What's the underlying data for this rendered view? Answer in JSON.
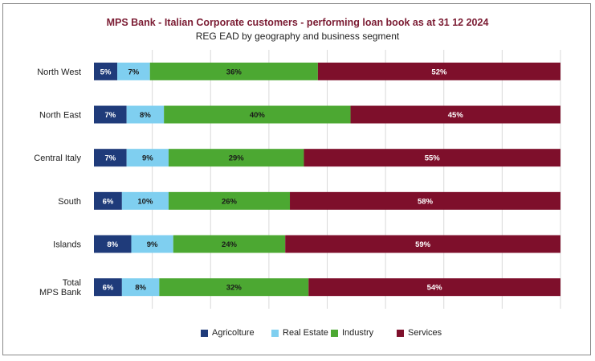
{
  "title": "MPS Bank - Italian Corporate customers - performing loan book as at 31 12 2024",
  "subtitle": "REG EAD by geography and business segment",
  "chart_data": {
    "type": "bar",
    "orientation": "horizontal",
    "stacked": true,
    "percent_stacked": true,
    "title": "MPS Bank - Italian Corporate customers - performing loan book as at 31 12 2024",
    "subtitle": "REG EAD by geography and business segment",
    "xlabel": "",
    "ylabel": "",
    "xlim": [
      0,
      100
    ],
    "grid": true,
    "legend_position": "bottom",
    "categories": [
      "North West",
      "North East",
      "Central Italy",
      "South",
      "Islands",
      "Total MPS Bank"
    ],
    "series": [
      {
        "name": "Agricolture",
        "color": "#1f3b7a",
        "values": [
          5,
          7,
          7,
          6,
          8,
          6
        ],
        "labels": [
          "5%",
          "7%",
          "7%",
          "6%",
          "8%",
          "6%"
        ],
        "label_color": "#ffffff"
      },
      {
        "name": "Real Estate",
        "color": "#7fcff0",
        "values": [
          7,
          8,
          9,
          10,
          9,
          8
        ],
        "labels": [
          "7%",
          "8%",
          "9%",
          "10%",
          "9%",
          "8%"
        ],
        "label_color": "#1a1a1a"
      },
      {
        "name": "Industry",
        "color": "#4ca832",
        "values": [
          36,
          40,
          29,
          26,
          24,
          32
        ],
        "labels": [
          "36%",
          "40%",
          "29%",
          "26%",
          "24%",
          "32%"
        ],
        "label_color": "#1a1a1a"
      },
      {
        "name": "Services",
        "color": "#7e0f2b",
        "values": [
          52,
          45,
          55,
          58,
          59,
          54
        ],
        "labels": [
          "52%",
          "45%",
          "55%",
          "58%",
          "59%",
          "54%"
        ],
        "label_color": "#ffffff"
      }
    ]
  }
}
